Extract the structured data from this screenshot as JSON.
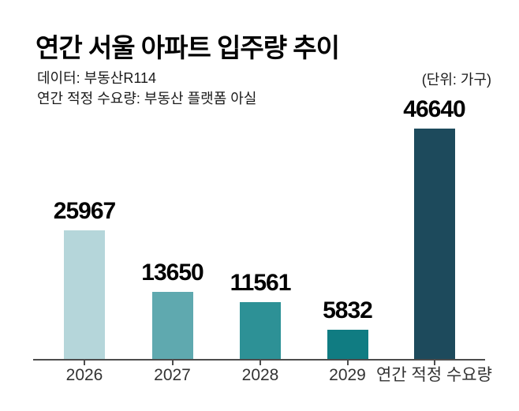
{
  "header": {
    "title": "연간 서울 아파트 입주량 추이",
    "source": "데이터: 부동산R114",
    "demand_source": "연간 적정 수요량: 부동산 플랫폼 아실",
    "unit": "(단위: 가구)"
  },
  "chart_data": {
    "type": "bar",
    "title": "연간 서울 아파트 입주량 추이",
    "subtitle_lines": [
      "데이터: 부동산R114",
      "연간 적정 수요량: 부동산 플랫폼 아실"
    ],
    "unit_label": "(단위: 가구)",
    "categories": [
      "2026",
      "2027",
      "2028",
      "2029",
      "연간 적정 수요량"
    ],
    "values": [
      25967,
      13650,
      11561,
      5832,
      46640
    ],
    "value_labels": [
      "25967",
      "13650",
      "11561",
      "5832",
      "46640"
    ],
    "bar_colors": [
      "#b5d6da",
      "#5fa9af",
      "#2d9196",
      "#107c82",
      "#1d4a5c"
    ],
    "axis_color": "#4d4d4d",
    "value_label_color": "#000000",
    "category_label_color": "#333333",
    "background_color": "#ffffff",
    "ylim": [
      0,
      46640
    ],
    "grid": false,
    "legend": false,
    "xlabel": "",
    "ylabel": "",
    "value_label_position": "above-bars"
  }
}
